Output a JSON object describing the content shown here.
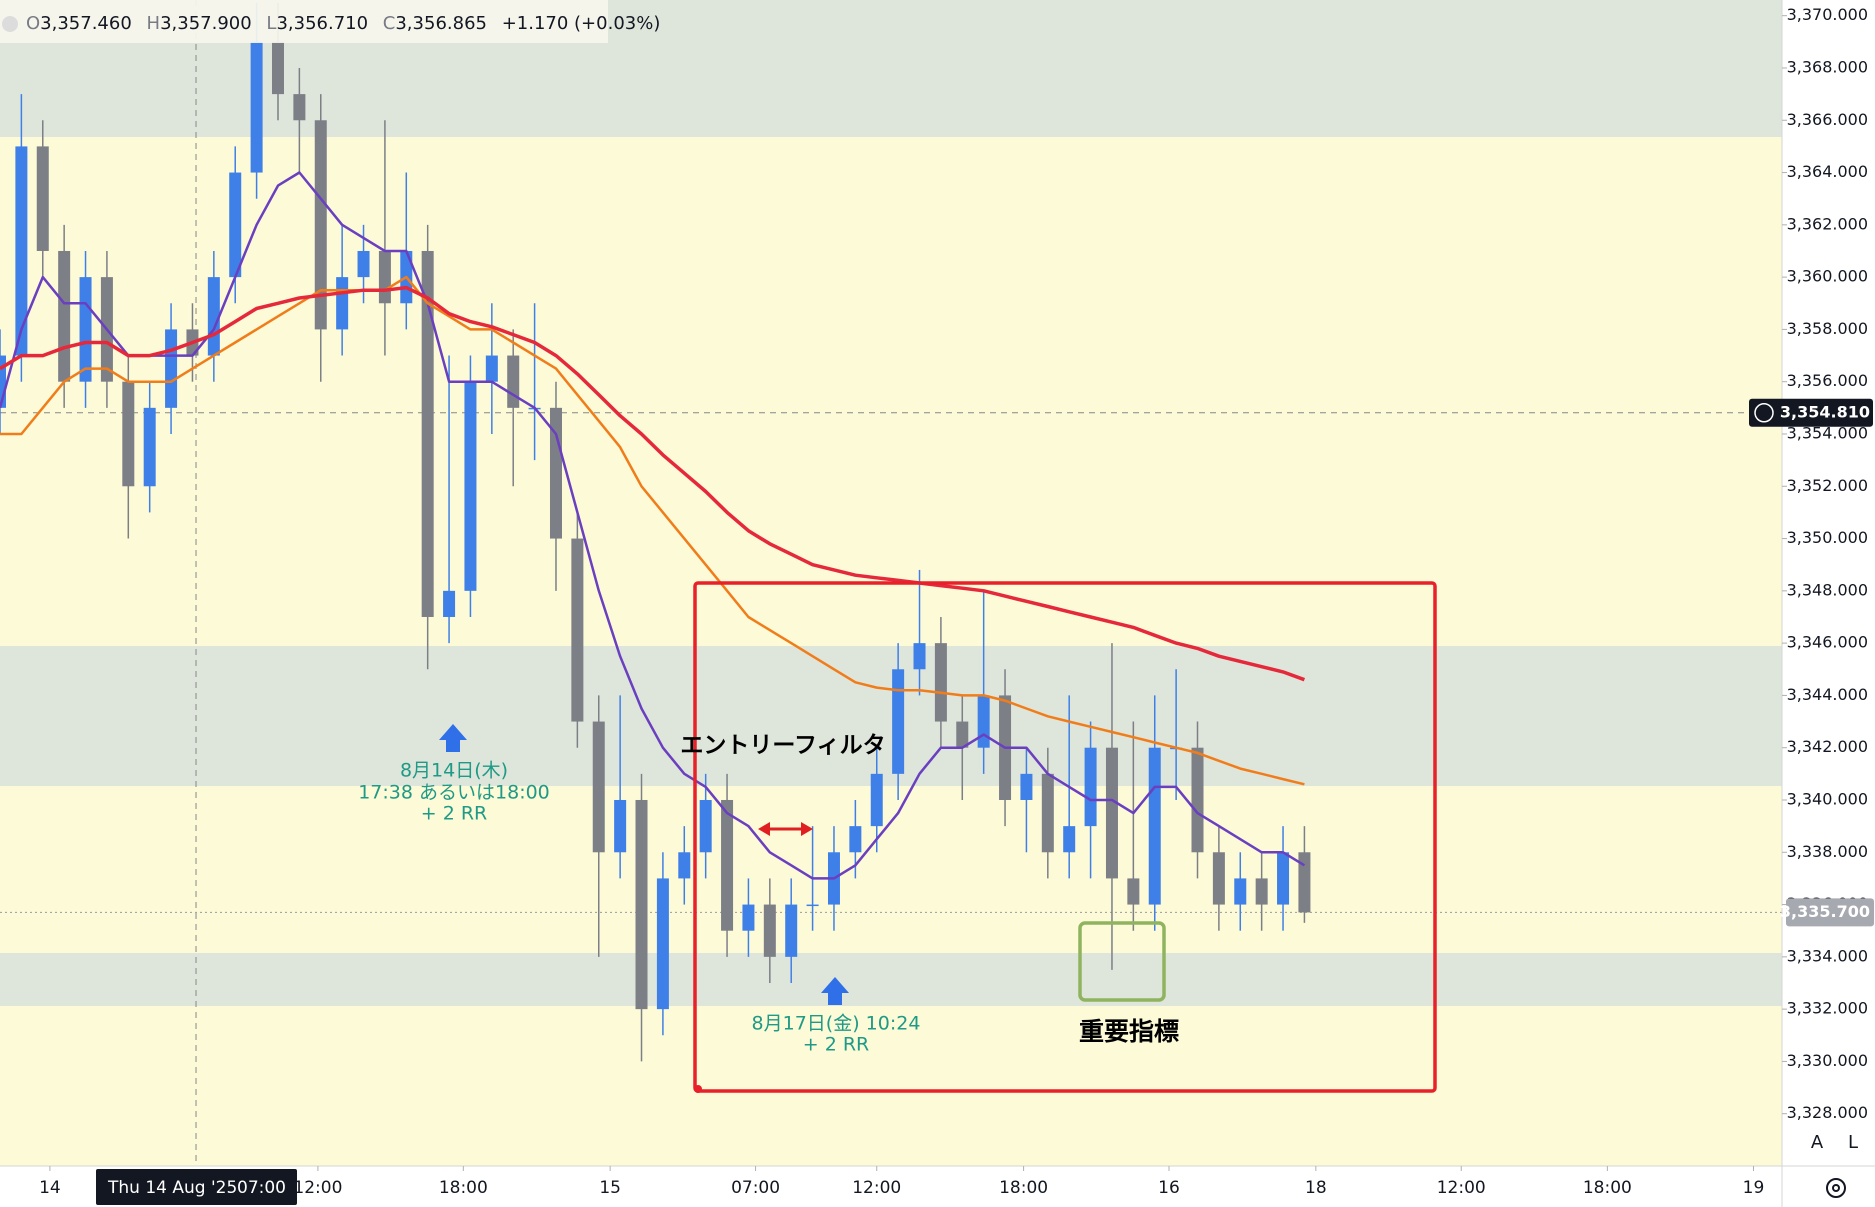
{
  "header": {
    "items": [
      {
        "label": "O",
        "value": "3,357.460"
      },
      {
        "label": "H",
        "value": "3,357.900"
      },
      {
        "label": "L",
        "value": "3,356.710"
      },
      {
        "label": "C",
        "value": "3,356.865"
      }
    ],
    "change": "+1.170 (+0.03%)"
  },
  "annotations": {
    "entry_filter": "エントリーフィルタ",
    "important": "重要指標",
    "signal1": [
      "8月14日(木)",
      "17:38 あるいは18:00",
      "+ 2 RR"
    ],
    "signal2": [
      "8月17日(金) 10:24",
      "+ 2 RR"
    ]
  },
  "buttons": [
    "A",
    "L"
  ],
  "chart_data": {
    "type": "candlestick",
    "x": [
      0,
      3,
      6,
      9,
      12,
      15,
      18,
      21,
      24,
      27,
      30,
      33,
      36,
      39,
      42,
      45,
      48,
      51,
      54,
      57,
      60,
      63,
      66,
      69,
      72,
      75,
      78,
      81,
      84,
      87,
      90,
      93,
      96,
      99,
      102,
      105,
      108,
      111,
      114,
      117,
      120,
      123,
      126,
      129,
      132,
      135,
      138,
      141,
      144,
      147,
      150,
      153,
      156,
      159,
      162,
      165,
      168,
      171,
      174,
      177,
      180,
      183
    ],
    "open": [
      3355,
      3357,
      3365,
      3361,
      3356,
      3360,
      3356,
      3352,
      3355,
      3358,
      3357,
      3360,
      3364,
      3369,
      3367,
      3366,
      3358,
      3360,
      3361,
      3359,
      3361,
      3347,
      3348,
      3356,
      3357,
      3355,
      3355,
      3350,
      3343,
      3338,
      3340,
      3332,
      3337,
      3338,
      3340,
      3335,
      3336,
      3334,
      3336,
      3336,
      3338,
      3339,
      3341,
      3345,
      3346,
      3343,
      3342,
      3344,
      3340,
      3341,
      3338,
      3339,
      3342,
      3337,
      3336,
      3342,
      3342,
      3338,
      3336,
      3337,
      3336,
      3338
    ],
    "high": [
      3358,
      3367,
      3366,
      3362,
      3361,
      3361,
      3357,
      3356,
      3359,
      3359,
      3361,
      3365,
      3370.5,
      3370.5,
      3368,
      3367,
      3362,
      3362,
      3366,
      3364,
      3362,
      3357,
      3357,
      3359,
      3358,
      3359,
      3356,
      3351,
      3344,
      3344,
      3341,
      3338,
      3339,
      3341,
      3341,
      3337,
      3337,
      3337,
      3339,
      3339,
      3340,
      3342,
      3346,
      3348.8,
      3347,
      3344,
      3348,
      3345,
      3342,
      3342,
      3344,
      3343,
      3346,
      3343,
      3344,
      3345,
      3343,
      3339,
      3338,
      3338,
      3339,
      3339
    ],
    "low": [
      3354,
      3356,
      3360,
      3355,
      3355,
      3355,
      3350,
      3351,
      3354,
      3356,
      3356,
      3359,
      3363,
      3366,
      3364,
      3356,
      3357,
      3359,
      3357,
      3358,
      3345,
      3346,
      3347,
      3354,
      3352,
      3353,
      3348,
      3342,
      3334,
      3337,
      3330,
      3331,
      3336,
      3337,
      3334,
      3334,
      3333,
      3333,
      3335,
      3335,
      3337,
      3338,
      3340,
      3344,
      3342,
      3340,
      3341,
      3339,
      3338,
      3337,
      3337,
      3337,
      3333.5,
      3335,
      3335,
      3340,
      3337,
      3335,
      3335,
      3335,
      3335,
      3335.3
    ],
    "close": [
      3357,
      3365,
      3361,
      3356,
      3360,
      3356,
      3352,
      3355,
      3358,
      3357,
      3360,
      3364,
      3369,
      3367,
      3366,
      3358,
      3360,
      3361,
      3359,
      3361,
      3347,
      3348,
      3356,
      3357,
      3355,
      3355,
      3350,
      3343,
      3338,
      3340,
      3332,
      3337,
      3338,
      3340,
      3335,
      3336,
      3334,
      3336,
      3336,
      3338,
      3339,
      3341,
      3345,
      3346,
      3343,
      3342,
      3344,
      3340,
      3341,
      3338,
      3339,
      3342,
      3337,
      3336,
      3342,
      3342,
      3338,
      3336,
      3337,
      3336,
      3338,
      3335.7
    ],
    "up_color": "#3f80e8",
    "down_color": "#7d7f87",
    "lines": [
      {
        "color": "#6a3fc0",
        "values": [
          3355,
          3358,
          3360,
          3359,
          3359,
          3358,
          3357,
          3357,
          3357,
          3357,
          3358,
          3360,
          3362,
          3363.5,
          3364,
          3363,
          3362,
          3361.5,
          3361,
          3361,
          3359,
          3356,
          3356,
          3356,
          3355.5,
          3355,
          3354,
          3351,
          3348,
          3345.5,
          3343.5,
          3342,
          3341,
          3340.5,
          3339.5,
          3339,
          3338,
          3337.5,
          3337,
          3337,
          3337.5,
          3338.5,
          3339.5,
          3341,
          3342,
          3342,
          3342.5,
          3342,
          3342,
          3341,
          3340.5,
          3340,
          3340,
          3339.5,
          3340.5,
          3340.5,
          3339.5,
          3339,
          3338.5,
          3338,
          3338,
          3337.5
        ]
      },
      {
        "color": "#f07d1a",
        "values": [
          3354,
          3354,
          3355,
          3356,
          3356.5,
          3356.5,
          3356,
          3356,
          3356,
          3356.5,
          3357,
          3357.5,
          3358,
          3358.5,
          3359,
          3359.5,
          3359.5,
          3359.5,
          3359.5,
          3360,
          3359,
          3358.5,
          3358,
          3358,
          3357.5,
          3357,
          3356.5,
          3355.5,
          3354.5,
          3353.5,
          3352,
          3351,
          3350,
          3349,
          3348,
          3347,
          3346.5,
          3346,
          3345.5,
          3345,
          3344.5,
          3344.3,
          3344.2,
          3344.2,
          3344.1,
          3344,
          3344,
          3343.8,
          3343.5,
          3343.2,
          3343,
          3342.8,
          3342.6,
          3342.4,
          3342.2,
          3342,
          3341.8,
          3341.5,
          3341.2,
          3341,
          3340.8,
          3340.6
        ]
      },
      {
        "color": "#e5283a",
        "values": [
          3356.5,
          3357,
          3357,
          3357.3,
          3357.5,
          3357.5,
          3357,
          3357,
          3357.2,
          3357.5,
          3357.8,
          3358.3,
          3358.8,
          3359,
          3359.2,
          3359.3,
          3359.4,
          3359.5,
          3359.5,
          3359.6,
          3359.2,
          3358.6,
          3358.3,
          3358.1,
          3357.8,
          3357.5,
          3357,
          3356.3,
          3355.5,
          3354.7,
          3354,
          3353.2,
          3352.5,
          3351.8,
          3351,
          3350.3,
          3349.8,
          3349.4,
          3349,
          3348.8,
          3348.6,
          3348.5,
          3348.4,
          3348.3,
          3348.2,
          3348.1,
          3348,
          3347.8,
          3347.6,
          3347.4,
          3347.2,
          3347,
          3346.8,
          3346.6,
          3346.3,
          3346,
          3345.8,
          3345.5,
          3345.3,
          3345.1,
          3344.9,
          3344.6
        ]
      }
    ],
    "xlim": [
      0,
      250
    ],
    "ylim": [
      3326,
      3370.6
    ],
    "xticks": [
      {
        "value": 7,
        "label": "14"
      },
      {
        "value": 44.6,
        "label": "12:00"
      },
      {
        "value": 65,
        "label": "18:00"
      },
      {
        "value": 85.6,
        "label": "15"
      },
      {
        "value": 106,
        "label": "07:00"
      },
      {
        "value": 123,
        "label": "12:00"
      },
      {
        "value": 143.6,
        "label": "18:00"
      },
      {
        "value": 164,
        "label": "16"
      },
      {
        "value": 184.6,
        "label": "18"
      },
      {
        "value": 205,
        "label": "12:00"
      },
      {
        "value": 225.5,
        "label": "18:00"
      },
      {
        "value": 246,
        "label": "19"
      }
    ],
    "yticks": [
      {
        "value": 3328,
        "label": "3,328.000"
      },
      {
        "value": 3330,
        "label": "3,330.000"
      },
      {
        "value": 3332,
        "label": "3,332.000"
      },
      {
        "value": 3334,
        "label": "3,334.000"
      },
      {
        "value": 3336,
        "label": "3,336.000"
      },
      {
        "value": 3338,
        "label": "3,338.000"
      },
      {
        "value": 3340,
        "label": "3,340.000"
      },
      {
        "value": 3342,
        "label": "3,342.000"
      },
      {
        "value": 3344,
        "label": "3,344.000"
      },
      {
        "value": 3346,
        "label": "3,346.000"
      },
      {
        "value": 3348,
        "label": "3,348.000"
      },
      {
        "value": 3350,
        "label": "3,350.000"
      },
      {
        "value": 3352,
        "label": "3,352.000"
      },
      {
        "value": 3354,
        "label": "3,354.000"
      },
      {
        "value": 3356,
        "label": "3,356.000"
      },
      {
        "value": 3358,
        "label": "3,358.000"
      },
      {
        "value": 3360,
        "label": "3,360.000"
      },
      {
        "value": 3362,
        "label": "3,362.000"
      },
      {
        "value": 3364,
        "label": "3,364.000"
      },
      {
        "value": 3366,
        "label": "3,366.000"
      },
      {
        "value": 3368,
        "label": "3,368.000"
      },
      {
        "value": 3370,
        "label": "3,370.000"
      }
    ],
    "crosshair_price": {
      "value": 3354.81,
      "label": "3,354.810"
    },
    "crosshair_x": {
      "value": 27.5,
      "date": "Thu 14 Aug '25",
      "time": "07:00"
    },
    "last_price": {
      "value": 3335.7,
      "label": "3,335.700"
    }
  }
}
